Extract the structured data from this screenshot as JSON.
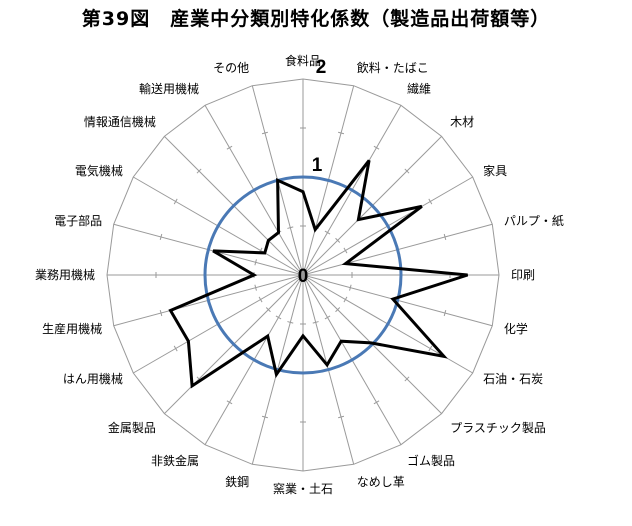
{
  "chart_data": {
    "type": "radar",
    "title": "第39図　産業中分類別特化係数（製造品出荷額等）",
    "axis_range": [
      0,
      2
    ],
    "tick_labels": [
      "0",
      "1",
      "2"
    ],
    "reference_circle": 1,
    "grid": true,
    "categories": [
      "食料品",
      "飲料・たばこ",
      "繊維",
      "木材",
      "家具",
      "パルプ・紙",
      "印刷",
      "化学",
      "石油・石炭",
      "プラスチック製品",
      "ゴム製品",
      "なめし革",
      "窯業・土石",
      "鉄鋼",
      "非鉄金属",
      "金属製品",
      "はん用機械",
      "生産用機械",
      "業務用機械",
      "電子部品",
      "電気機械",
      "情報通信機械",
      "輸送用機械",
      "その他"
    ],
    "series": [
      {
        "values": [
          0.85,
          0.48,
          1.35,
          0.8,
          1.4,
          0.45,
          1.68,
          0.95,
          1.66,
          0.98,
          0.78,
          0.95,
          0.62,
          1.05,
          0.72,
          1.6,
          1.35,
          1.4,
          0.5,
          0.95,
          0.45,
          0.5,
          0.5,
          1.0
        ],
        "color": "#000000"
      }
    ],
    "colors": {
      "reference_circle": "#4a79b5",
      "grid": "#9a9a9a"
    }
  }
}
